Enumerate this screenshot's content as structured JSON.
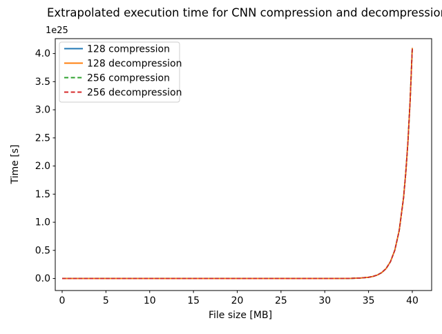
{
  "chart_data": {
    "type": "line",
    "title": "Extrapolated execution time for CNN compression and decompression",
    "xlabel": "File size [MB]",
    "ylabel": "Time [s]",
    "y_offset_text": "1e25",
    "y_scale_factor": 1e+25,
    "values_unit": "1e25 s",
    "grid": false,
    "legend_position": "upper left",
    "xlim": [
      -0.79,
      42.21
    ],
    "ylim": [
      -0.214,
      4.265
    ],
    "x_ticks": [
      0,
      5,
      10,
      15,
      20,
      25,
      30,
      35,
      40
    ],
    "x_tick_labels": [
      "0",
      "5",
      "10",
      "15",
      "20",
      "25",
      "30",
      "35",
      "40"
    ],
    "y_ticks": [
      0,
      0.5,
      1.0,
      1.5,
      2.0,
      2.5,
      3.0,
      3.5,
      4.0
    ],
    "y_tick_labels": [
      "0.0",
      "0.5",
      "1.0",
      "1.5",
      "2.0",
      "2.5",
      "3.0",
      "3.5",
      "4.0"
    ],
    "x": [
      0,
      5,
      10,
      15,
      20,
      25,
      30,
      31,
      32,
      33,
      34,
      35,
      35.5,
      36,
      36.5,
      37,
      37.5,
      38,
      38.5,
      39,
      39.25,
      39.5,
      39.75,
      40
    ],
    "series": [
      {
        "name": "128 compression",
        "color": "#1f77b4",
        "linestyle": "solid",
        "values": [
          0,
          0,
          0,
          0,
          0,
          0,
          0.0001,
          0.0003,
          0.0009,
          0.0026,
          0.0075,
          0.0215,
          0.0364,
          0.0615,
          0.1039,
          0.1756,
          0.2968,
          0.5022,
          0.8491,
          1.4346,
          1.8727,
          2.4256,
          3.1534,
          4.1
        ]
      },
      {
        "name": "128 decompression",
        "color": "#ff7f0e",
        "linestyle": "solid",
        "values": [
          0,
          0,
          0,
          0,
          0,
          0,
          0.0001,
          0.0003,
          0.0009,
          0.0026,
          0.0075,
          0.0215,
          0.0364,
          0.0615,
          0.1039,
          0.1756,
          0.2968,
          0.5022,
          0.8491,
          1.4346,
          1.8727,
          2.4256,
          3.1534,
          4.1
        ]
      },
      {
        "name": "256 compression",
        "color": "#2ca02c",
        "linestyle": "dashed",
        "values": [
          0,
          0,
          0,
          0,
          0,
          0,
          0.0001,
          0.0003,
          0.0009,
          0.0026,
          0.0075,
          0.0215,
          0.0364,
          0.0615,
          0.1039,
          0.1756,
          0.2968,
          0.5022,
          0.8491,
          1.4346,
          1.8727,
          2.4256,
          3.1534,
          4.1
        ]
      },
      {
        "name": "256 decompression",
        "color": "#d62728",
        "linestyle": "dashed",
        "values": [
          0,
          0,
          0,
          0,
          0,
          0,
          0.0001,
          0.0003,
          0.0009,
          0.0026,
          0.0075,
          0.0215,
          0.0364,
          0.0615,
          0.1039,
          0.1756,
          0.2968,
          0.5022,
          0.8491,
          1.4346,
          1.8727,
          2.4256,
          3.1534,
          4.1
        ]
      }
    ]
  }
}
